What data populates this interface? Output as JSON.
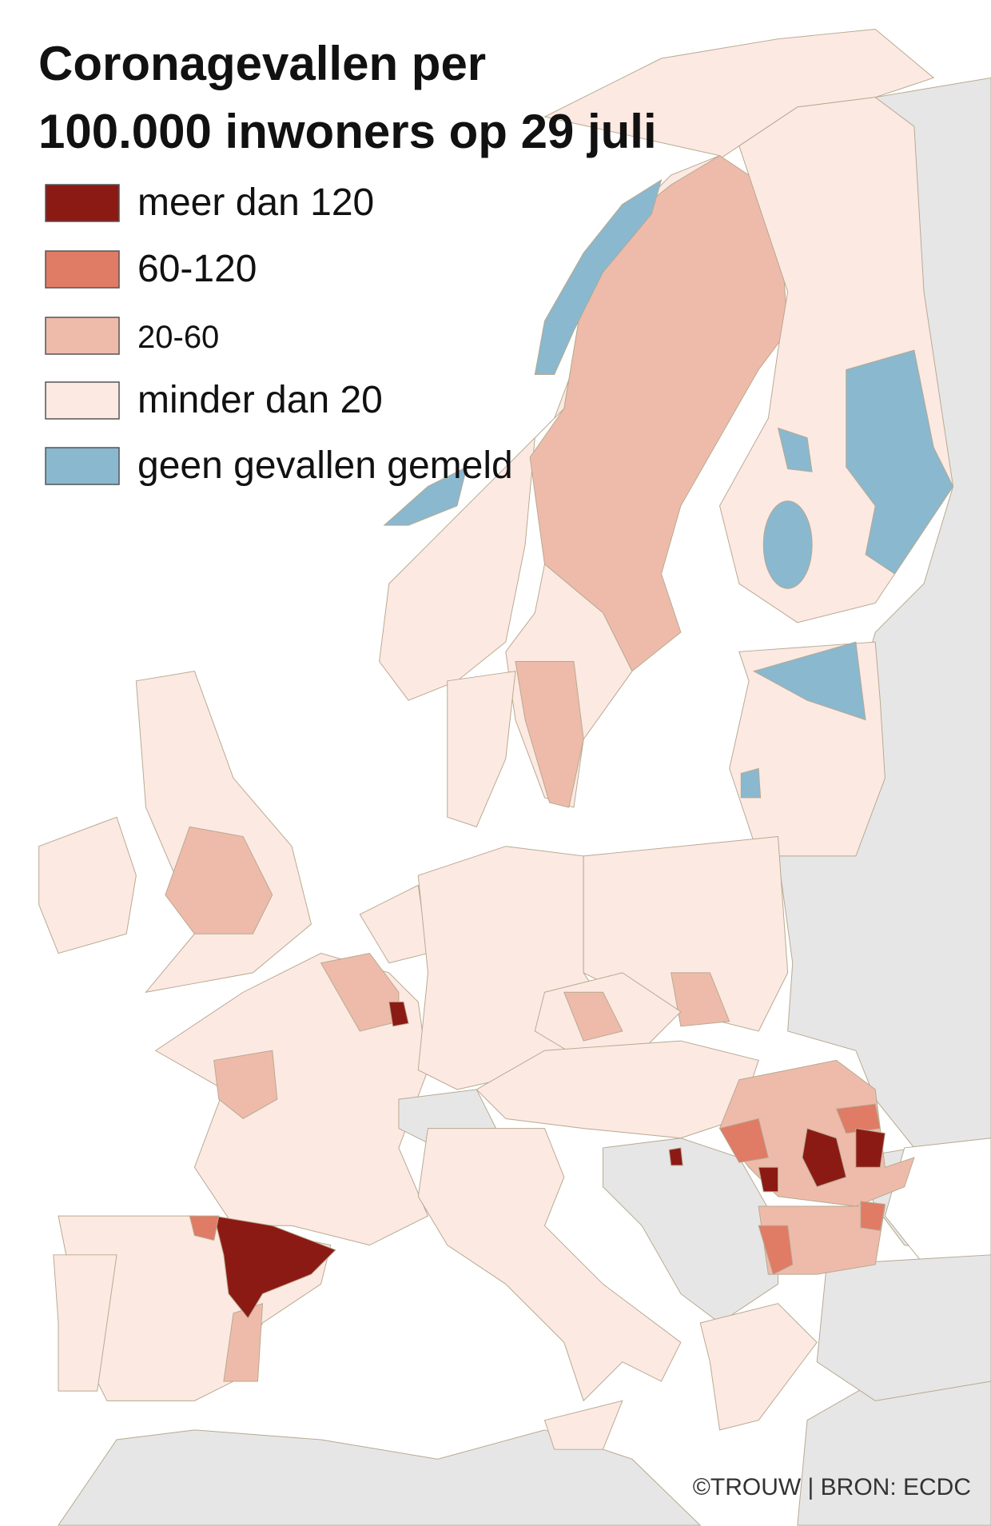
{
  "title": [
    "Coronagevallen per",
    "100.000 inwoners op 29 juli"
  ],
  "legend": [
    {
      "label": "meer dan 120",
      "color": "#8c1a14"
    },
    {
      "label": "60-120",
      "color": "#e07b66"
    },
    {
      "label": "20-60",
      "color": "#eebbab"
    },
    {
      "label": "minder dan 20",
      "color": "#fce9e2"
    },
    {
      "label": "geen gevallen gemeld",
      "color": "#8ab8cf"
    }
  ],
  "credit": "©TROUW | BRON: ECDC"
}
